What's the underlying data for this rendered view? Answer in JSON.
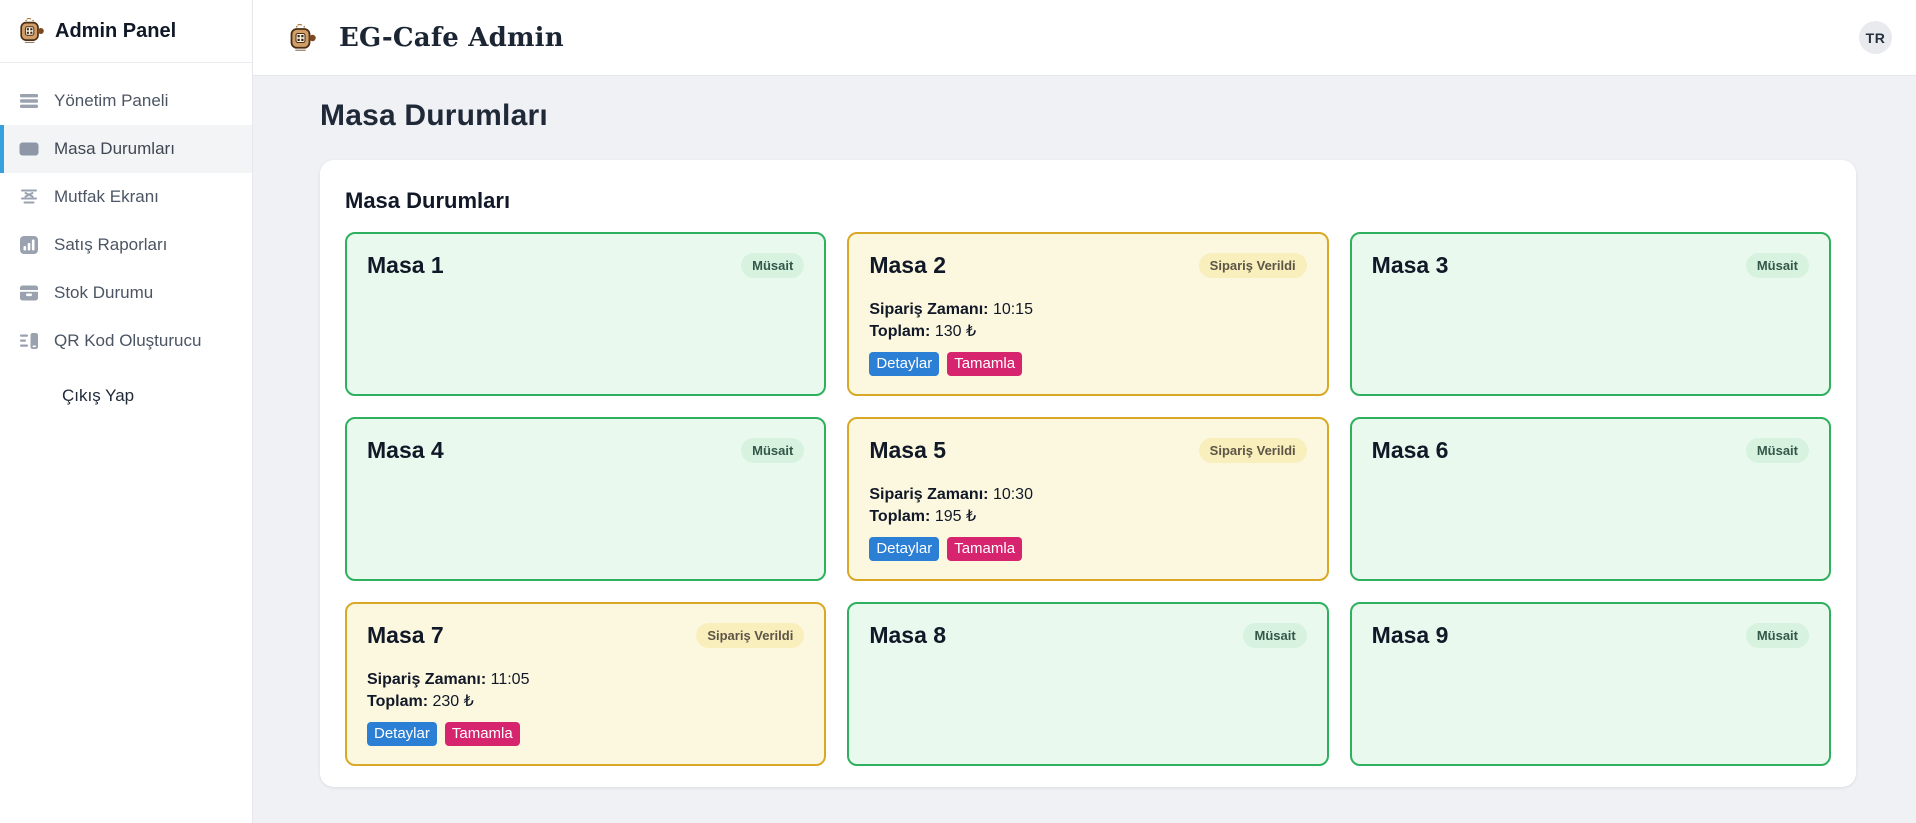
{
  "sidebar": {
    "title": "Admin Panel",
    "items": [
      {
        "label": "Yönetim Paneli",
        "icon": "dashboard-menu-icon",
        "active": false
      },
      {
        "label": "Masa Durumları",
        "icon": "table-icon",
        "active": true
      },
      {
        "label": "Mutfak Ekranı",
        "icon": "kitchen-screen-icon",
        "active": false
      },
      {
        "label": "Satış Raporları",
        "icon": "sales-chart-icon",
        "active": false
      },
      {
        "label": "Stok Durumu",
        "icon": "stock-box-icon",
        "active": false
      },
      {
        "label": "QR Kod Oluşturucu",
        "icon": "qr-code-icon",
        "active": false
      }
    ],
    "logout_label": "Çıkış Yap"
  },
  "header": {
    "brand": "EG-Cafe Admin",
    "logo": "cafe-logo-icon",
    "language_badge": "TR"
  },
  "page": {
    "title": "Masa Durumları"
  },
  "panel": {
    "title": "Masa Durumları"
  },
  "labels": {
    "order_time": "Sipariş Zamanı:",
    "total": "Toplam:",
    "details_button": "Detaylar",
    "complete_button": "Tamamla"
  },
  "tables": [
    {
      "name": "Masa 1",
      "state": "available",
      "status": "Müsait"
    },
    {
      "name": "Masa 2",
      "state": "ordered",
      "status": "Sipariş Verildi",
      "order_time": "10:15",
      "total": "130 ₺"
    },
    {
      "name": "Masa 3",
      "state": "available",
      "status": "Müsait"
    },
    {
      "name": "Masa 4",
      "state": "available",
      "status": "Müsait"
    },
    {
      "name": "Masa 5",
      "state": "ordered",
      "status": "Sipariş Verildi",
      "order_time": "10:30",
      "total": "195 ₺"
    },
    {
      "name": "Masa 6",
      "state": "available",
      "status": "Müsait"
    },
    {
      "name": "Masa 7",
      "state": "ordered",
      "status": "Sipariş Verildi",
      "order_time": "11:05",
      "total": "230 ₺"
    },
    {
      "name": "Masa 8",
      "state": "available",
      "status": "Müsait"
    },
    {
      "name": "Masa 9",
      "state": "available",
      "status": "Müsait"
    }
  ],
  "colors": {
    "accent_blue": "#38a1dd",
    "available_border": "#2fb05e",
    "available_bg": "#e9f9ee",
    "available_badge_bg": "#d8f2e0",
    "ordered_border": "#d9a826",
    "ordered_bg": "#fcf8e0",
    "ordered_badge_bg": "#f8efbc",
    "details_button_bg": "#2b7fd4",
    "complete_button_bg": "#d6246e",
    "main_bg": "#eff1f4"
  }
}
